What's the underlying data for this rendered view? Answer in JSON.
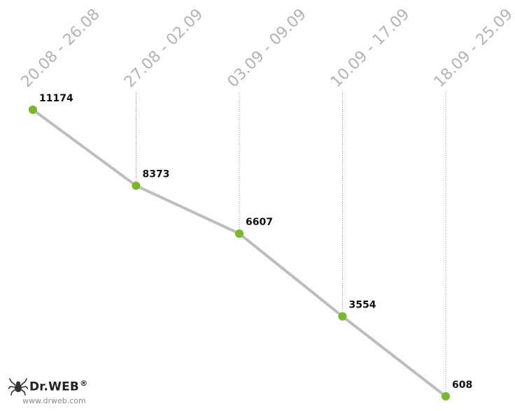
{
  "chart_data": {
    "type": "line",
    "categories": [
      "20.08 - 26.08",
      "27.08 - 02.09",
      "03.09 - 09.09",
      "10.09 - 17.09",
      "18.09 - 25.09"
    ],
    "values": [
      11174,
      8373,
      6607,
      3554,
      608
    ],
    "data_labels": [
      "11174",
      "8373",
      "6607",
      "3554",
      "608"
    ],
    "title": "",
    "xlabel": "",
    "ylabel": "",
    "ylim": [
      608,
      11174
    ],
    "grid": "vertical dotted drop lines",
    "line_color": "#bdbdbd",
    "marker_color": "#76b82a"
  },
  "branding": {
    "logo_text": "Dr.WEB",
    "logo_mark": "®",
    "url": "www.drweb.com",
    "icon": "spider-icon"
  }
}
